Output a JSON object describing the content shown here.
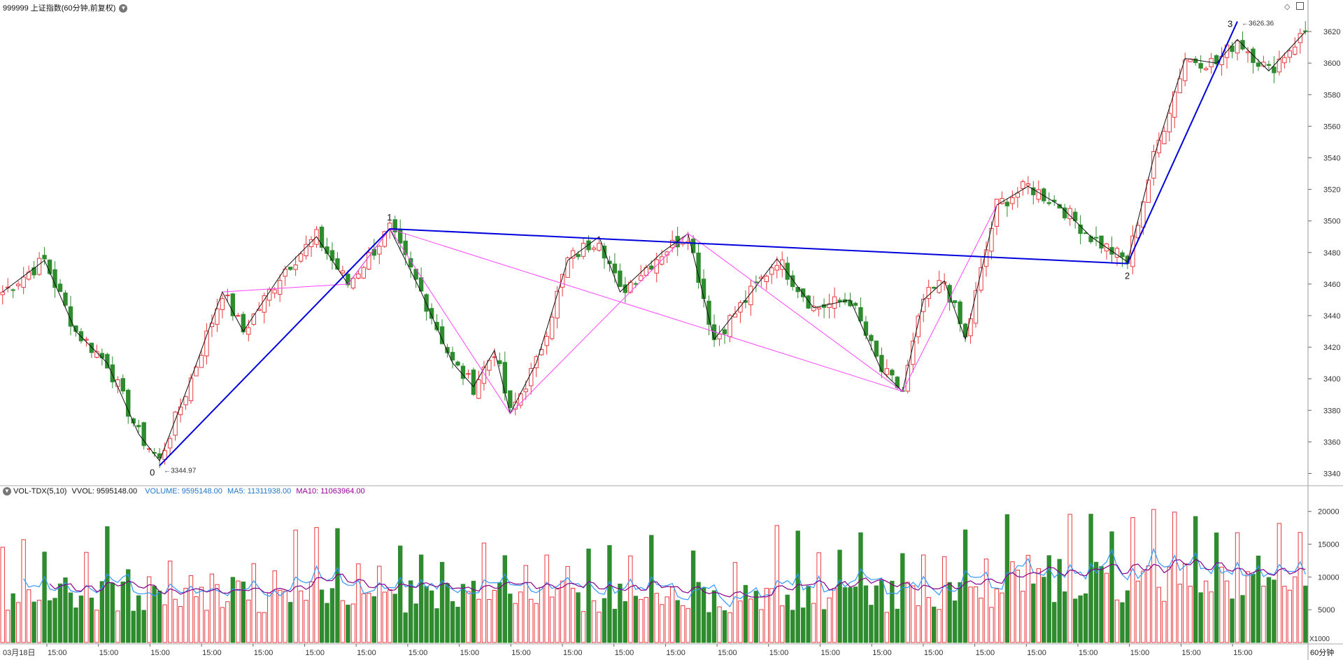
{
  "header": {
    "title": "999999 上证指数(60分钟,前复权)",
    "dropdown_icon": "chevron-down-icon",
    "corner_icons": [
      "diamond-icon",
      "window-icon"
    ]
  },
  "volume_header": {
    "indicator": "VOL-TDX(5,10)",
    "vvol": "VVOL: 9595148.00",
    "volume": "VOLUME: 9595148.00",
    "ma5": "MA5: 11311938.00",
    "ma10": "MA10: 11063964.00"
  },
  "colors": {
    "up": "#e8383d",
    "down": "#2e8b2e",
    "wave": "#0000dd",
    "sub_wave": "#ff44ff",
    "ma5": "#3399ff",
    "ma10": "#880088",
    "text_volume": "#2277cc",
    "text_ma10": "#990099"
  },
  "chart_data": [
    {
      "type": "candlestick",
      "y_ticks": [
        3340,
        3360,
        3380,
        3400,
        3420,
        3440,
        3460,
        3480,
        3500,
        3520,
        3540,
        3560,
        3580,
        3600,
        3620
      ],
      "ylim": [
        3334,
        3632
      ],
      "wave_points": [
        {
          "label": "0",
          "value": 3344.97,
          "annotation": "3344.97"
        },
        {
          "label": "1",
          "value": 3495
        },
        {
          "label": "2",
          "value": 3473
        },
        {
          "label": "3",
          "value": 3626.36,
          "annotation": "3626.36"
        }
      ],
      "anchors": [
        [
          0,
          3455
        ],
        [
          8,
          3475
        ],
        [
          14,
          3430
        ],
        [
          20,
          3410
        ],
        [
          26,
          3365
        ],
        [
          30,
          3348
        ],
        [
          36,
          3400
        ],
        [
          42,
          3455
        ],
        [
          46,
          3430
        ],
        [
          54,
          3470
        ],
        [
          60,
          3490
        ],
        [
          66,
          3460
        ],
        [
          74,
          3495
        ],
        [
          80,
          3455
        ],
        [
          86,
          3410
        ],
        [
          90,
          3395
        ],
        [
          94,
          3418
        ],
        [
          97,
          3378
        ],
        [
          102,
          3410
        ],
        [
          108,
          3475
        ],
        [
          114,
          3490
        ],
        [
          118,
          3455
        ],
        [
          126,
          3480
        ],
        [
          131,
          3492
        ],
        [
          136,
          3425
        ],
        [
          142,
          3450
        ],
        [
          148,
          3476
        ],
        [
          155,
          3445
        ],
        [
          162,
          3450
        ],
        [
          168,
          3405
        ],
        [
          172,
          3392
        ],
        [
          176,
          3450
        ],
        [
          180,
          3462
        ],
        [
          184,
          3425
        ],
        [
          190,
          3510
        ],
        [
          196,
          3522
        ],
        [
          202,
          3510
        ],
        [
          208,
          3490
        ],
        [
          215,
          3474
        ],
        [
          220,
          3540
        ],
        [
          226,
          3603
        ],
        [
          232,
          3600
        ],
        [
          236,
          3615
        ],
        [
          242,
          3595
        ],
        [
          249,
          3620
        ]
      ],
      "candle_count": 250
    },
    {
      "type": "bar",
      "title": "VOL-TDX(5,10)",
      "y_ticks": [
        5000,
        10000,
        15000,
        20000
      ],
      "ylim": [
        0,
        22000
      ],
      "unit": "X1000",
      "series": [
        {
          "name": "VOLUME",
          "kind": "bar"
        },
        {
          "name": "MA5",
          "kind": "line"
        },
        {
          "name": "MA10",
          "kind": "line"
        }
      ]
    }
  ],
  "x_axis": {
    "first_label": "03月18日",
    "label": "15:00",
    "period": "60分钟"
  }
}
